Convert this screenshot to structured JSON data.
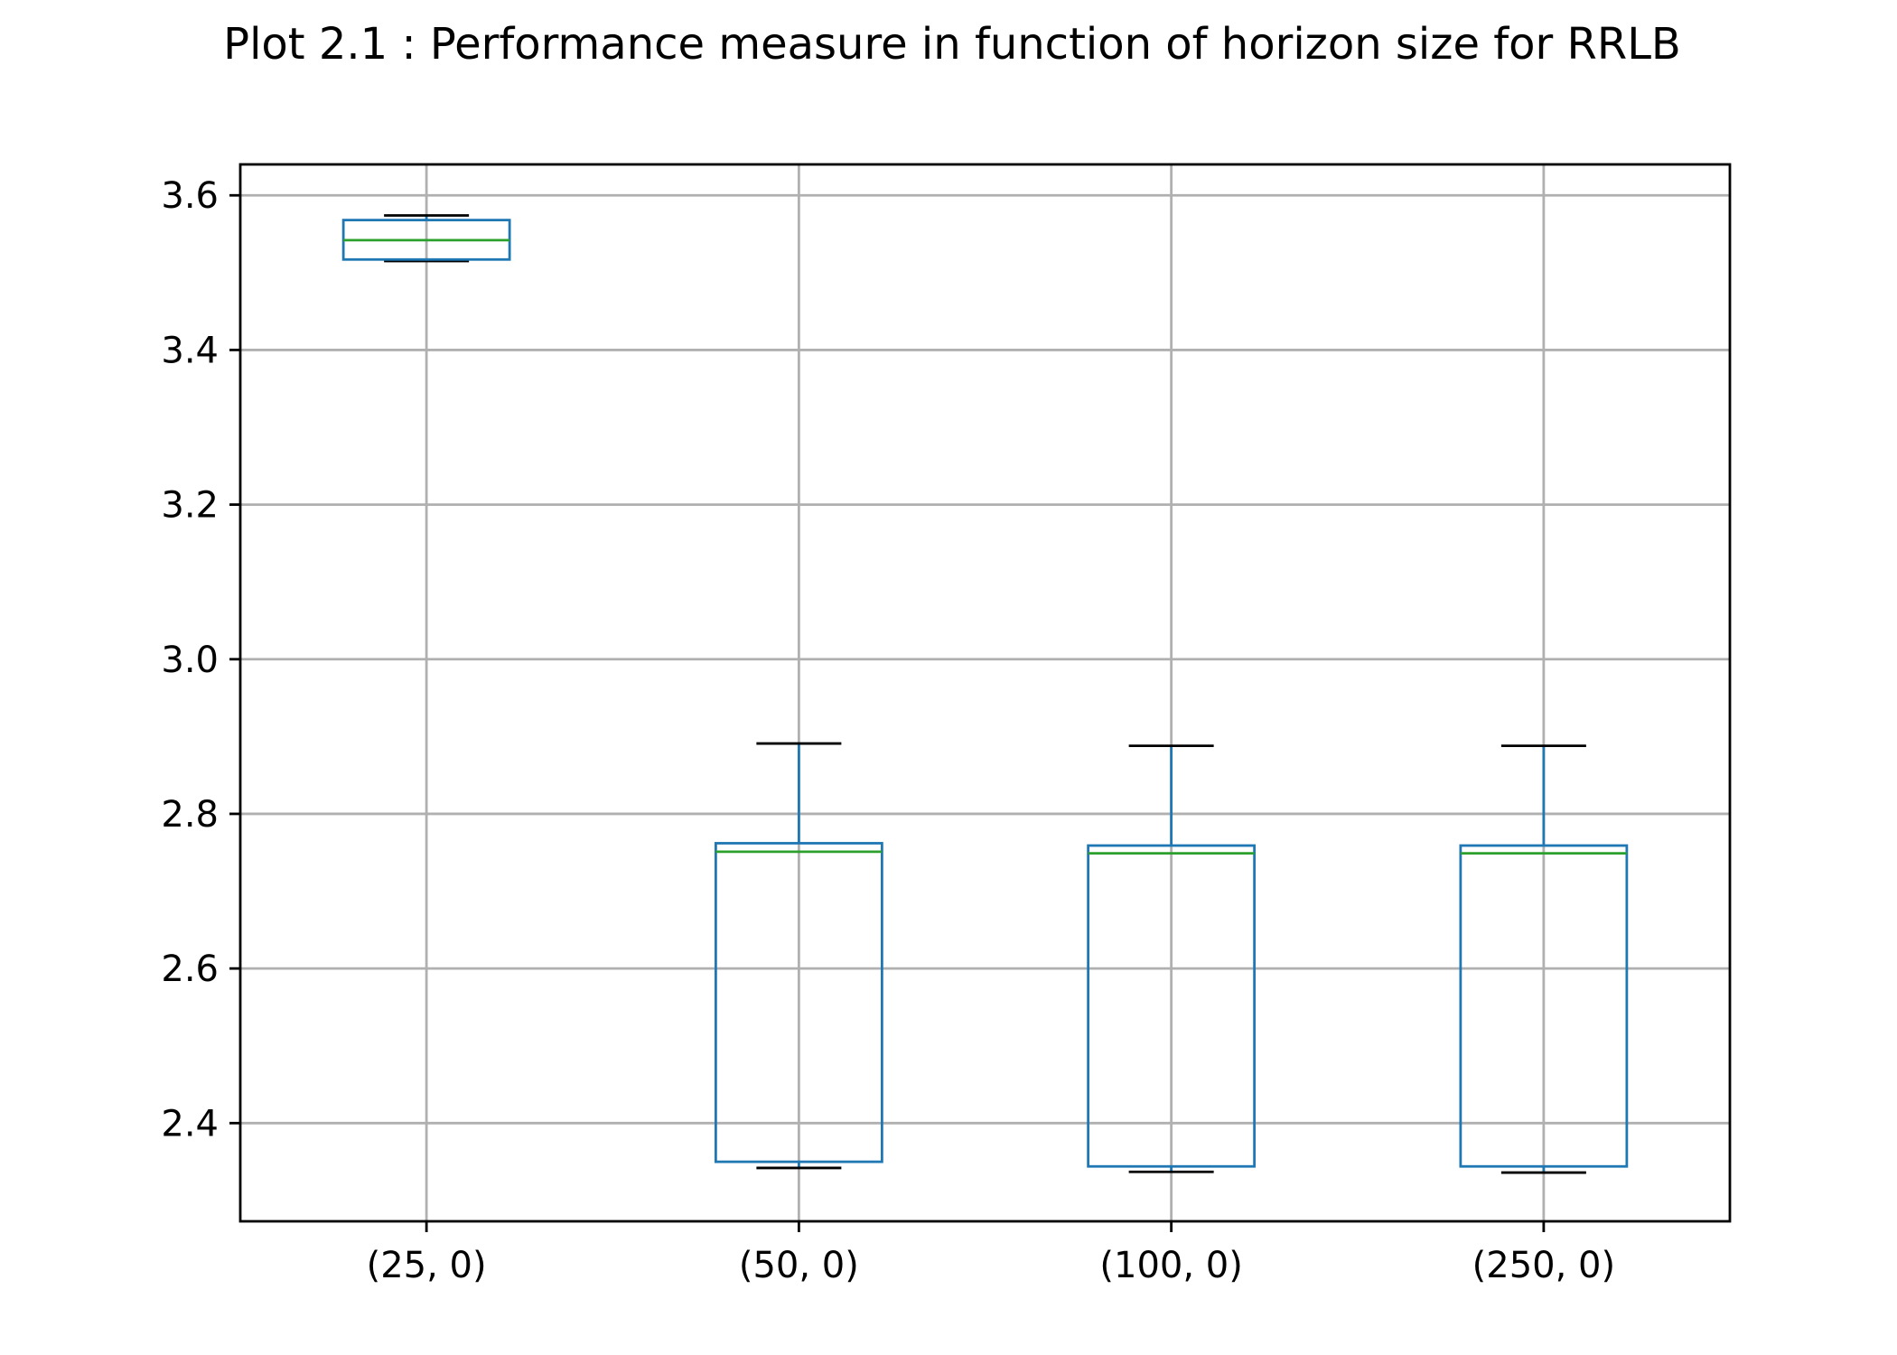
{
  "chart_data": {
    "type": "box",
    "title": "Plot 2.1 : Performance measure in function of horizon size for RRLB",
    "xlabel": "",
    "ylabel": "",
    "categories": [
      "(25, 0)",
      "(50, 0)",
      "(100, 0)",
      "(250, 0)"
    ],
    "ylim": [
      2.273,
      3.64
    ],
    "yticks": [
      2.4,
      2.6,
      2.8,
      3.0,
      3.2,
      3.4,
      3.6
    ],
    "ytick_labels": [
      "2.4",
      "2.6",
      "2.8",
      "3.0",
      "3.2",
      "3.4",
      "3.6"
    ],
    "grid": true,
    "boxes": [
      {
        "category": "(25, 0)",
        "whisker_low": 3.515,
        "q1": 3.517,
        "median": 3.542,
        "q3": 3.568,
        "whisker_high": 3.574
      },
      {
        "category": "(50, 0)",
        "whisker_low": 2.342,
        "q1": 2.35,
        "median": 2.751,
        "q3": 2.762,
        "whisker_high": 2.891
      },
      {
        "category": "(100, 0)",
        "whisker_low": 2.337,
        "q1": 2.344,
        "median": 2.749,
        "q3": 2.759,
        "whisker_high": 2.888
      },
      {
        "category": "(250, 0)",
        "whisker_low": 2.336,
        "q1": 2.344,
        "median": 2.749,
        "q3": 2.759,
        "whisker_high": 2.888
      }
    ],
    "colors": {
      "box": "#1f77b4",
      "median": "#2ca02c",
      "cap": "#000000",
      "grid": "#b0b0b0",
      "axis": "#000000"
    }
  }
}
